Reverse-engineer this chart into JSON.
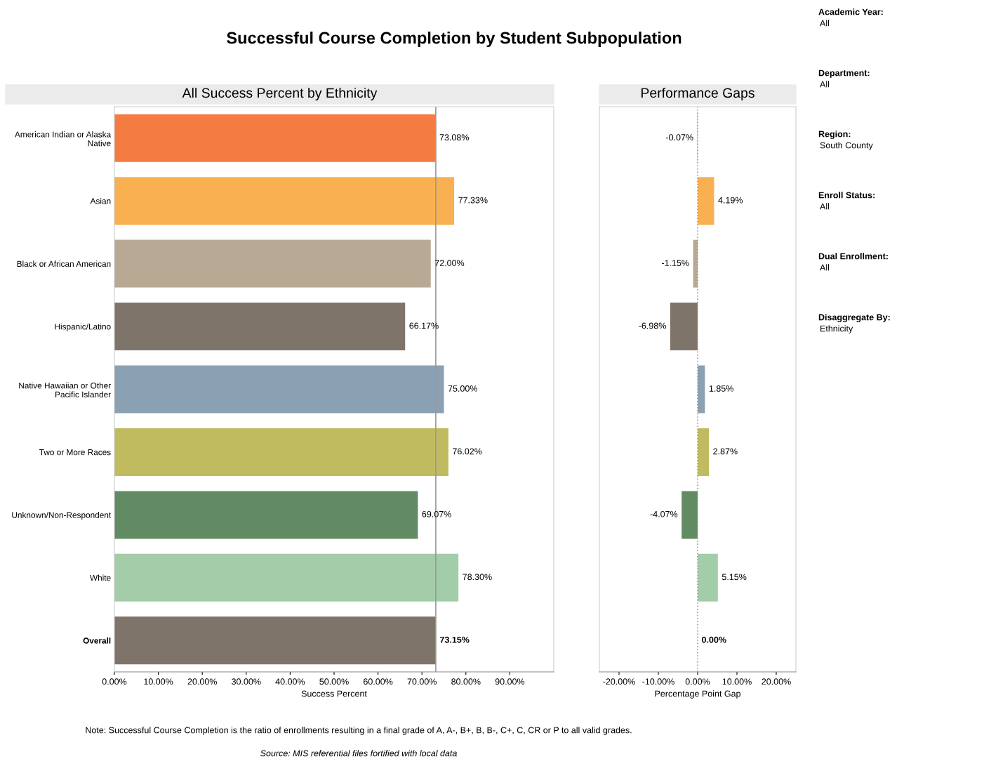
{
  "chart_data": [
    {
      "type": "bar",
      "orientation": "horizontal",
      "title": "Successful Course Completion by Student Subpopulation",
      "subtitle": "All Success Percent by Ethnicity",
      "xlabel": "Success Percent",
      "categories": [
        "American Indian or Alaska Native",
        "Asian",
        "Black or African American",
        "Hispanic/Latino",
        "Native Hawaiian or Other Pacific Islander",
        "Two or More Races",
        "Unknown/Non-Respondent",
        "White",
        "Overall"
      ],
      "values": [
        73.08,
        77.33,
        72.0,
        66.17,
        75.0,
        76.02,
        69.07,
        78.3,
        73.15
      ],
      "value_labels": [
        "73.08%",
        "77.33%",
        "72.00%",
        "66.17%",
        "75.00%",
        "76.02%",
        "69.07%",
        "78.30%",
        "73.15%"
      ],
      "colors": [
        "#f47c43",
        "#f9b050",
        "#b8a994",
        "#7f7469",
        "#8aa0b3",
        "#c0bb5e",
        "#628b63",
        "#a3cca8",
        "#7f7469"
      ],
      "xlim": [
        0,
        100
      ],
      "xticks": [
        {
          "value": 0,
          "label": "0.00%"
        },
        {
          "value": 10,
          "label": "10.00%"
        },
        {
          "value": 20,
          "label": "20.00%"
        },
        {
          "value": 30,
          "label": "30.00%"
        },
        {
          "value": 40,
          "label": "40.00%"
        },
        {
          "value": 50,
          "label": "50.00%"
        },
        {
          "value": 60,
          "label": "60.00%"
        },
        {
          "value": 70,
          "label": "70.00%"
        },
        {
          "value": 80,
          "label": "80.00%"
        },
        {
          "value": 90,
          "label": "90.00%"
        }
      ],
      "ref_lines": [
        {
          "axis": "x",
          "value": 73.15,
          "color": "#999999",
          "line_style": "solid"
        }
      ],
      "grid": false,
      "annotations": [
        "Note: Successful Course Completion is the ratio of enrollments resulting in a final grade of A, A-, B+, B, B-, C+, C, CR or P to all valid grades.",
        "Source: MIS referential files fortified with local data"
      ]
    },
    {
      "type": "bar",
      "orientation": "horizontal",
      "title": "Performance Gaps",
      "xlabel": "Percentage Point Gap",
      "categories": [
        null,
        null,
        null,
        null,
        null,
        null,
        null,
        null,
        null
      ],
      "values": [
        -0.07,
        4.19,
        -1.15,
        -6.98,
        1.85,
        2.87,
        -4.07,
        5.15,
        0.0
      ],
      "value_labels": [
        "-0.07%",
        "4.19%",
        "-1.15%",
        "-6.98%",
        "1.85%",
        "2.87%",
        "-4.07%",
        "5.15%",
        "0.00%"
      ],
      "colors": [
        "#f47c43",
        "#f9b050",
        "#b8a994",
        "#7f7469",
        "#8aa0b3",
        "#c0bb5e",
        "#628b63",
        "#a3cca8",
        "#7f7469"
      ],
      "xlim": [
        -25,
        25
      ],
      "xticks": [
        {
          "value": -20,
          "label": "-20.00%"
        },
        {
          "value": -10,
          "label": "-10.00%"
        },
        {
          "value": 0,
          "label": "0.00%"
        },
        {
          "value": 10,
          "label": "10.00%"
        },
        {
          "value": 20,
          "label": "20.00%"
        }
      ],
      "ref_lines": [
        {
          "axis": "x",
          "value": 0,
          "color": "#999999",
          "line_style": "dotted"
        }
      ],
      "tick_labels": "x",
      "grid": false
    },
    {
      "type": "other",
      "annotations": [
        "Academic Year:",
        "All",
        "Department:",
        "All",
        "Region:",
        "South County",
        "Enroll Status:",
        "All",
        "Dual Enrollment:",
        "All",
        "Disaggregate By:",
        "Ethnicity"
      ]
    }
  ]
}
